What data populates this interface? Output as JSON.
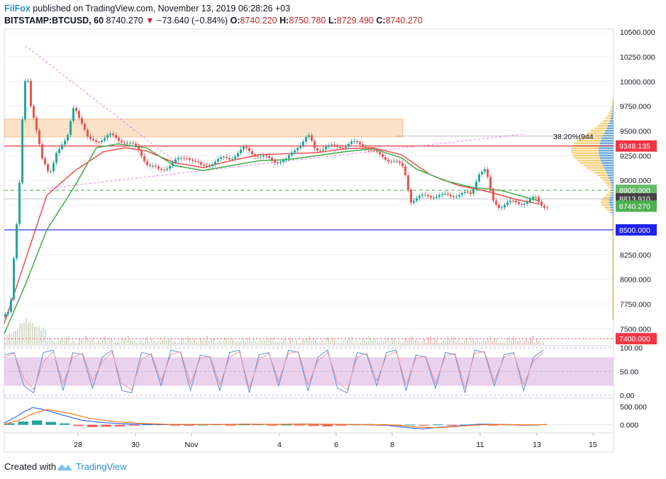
{
  "header": {
    "brand": "FilFox",
    "published": "published on TradingView.com, November 13, 2019 06:28:26 +03",
    "symbol": "BITSTAMP:BTCUSD, 60",
    "last": "8740.270",
    "arrow": "▼",
    "change": "−73.640 (−0.84%)",
    "o_label": "O:",
    "o_val": "8740.220",
    "h_label": "H:",
    "h_val": "8750.780",
    "l_label": "L:",
    "l_val": "8729.490",
    "c_label": "C:",
    "c_val": "8740.270"
  },
  "footer": {
    "created": "Created with",
    "brand": "TradingView"
  },
  "colors": {
    "up": "#26a69a",
    "down": "#ef5350",
    "grid": "#eef1f6",
    "ma_red": "#ef4444",
    "ma_green": "#4caf50",
    "support_blue": "#1c1cf0",
    "resistance_red": "#e53935",
    "zone": "#fbe2c8",
    "stoch_band": "#e1bee7"
  },
  "chart_data": [
    {
      "type": "candlestick",
      "title": "",
      "x_ticks": [
        "28",
        "30",
        "Nov",
        "4",
        "6",
        "8",
        "11",
        "13",
        "15"
      ],
      "y_ticks": [
        "10500.000",
        "10250.000",
        "10000.000",
        "9750.000",
        "9500.000",
        "9250.000",
        "9000.000",
        "8750.000",
        "8500.000",
        "8250.000",
        "8000.000",
        "7750.000",
        "7500.000"
      ],
      "ylim": [
        7330,
        10530
      ],
      "price_tags": [
        {
          "label": "9348.135",
          "value": 9348.135,
          "color": "#f23645"
        },
        {
          "label": "8900.000",
          "value": 8900,
          "color": "#66bb6a"
        },
        {
          "label": "8813.910",
          "value": 8813.91,
          "color": "#444444"
        },
        {
          "label": "8740.270",
          "value": 8740.27,
          "color": "#4caf50"
        },
        {
          "label": "8500.000",
          "value": 8500,
          "color": "#1e22f0"
        },
        {
          "label": "7400.000",
          "value": 7400,
          "color": "#f23645"
        }
      ],
      "fib_label": "38.20%(944",
      "fib_value": 9448,
      "resistance_zone": [
        9440,
        9620
      ],
      "series": [
        {
          "name": "",
          "kind": "ma-red",
          "points": [
            [
              0,
              7550
            ],
            [
              30,
              8200
            ],
            [
              60,
              8850
            ],
            [
              100,
              9100
            ],
            [
              140,
              9290
            ],
            [
              170,
              9330
            ],
            [
              200,
              9300
            ],
            [
              240,
              9180
            ],
            [
              280,
              9130
            ],
            [
              320,
              9200
            ],
            [
              360,
              9260
            ],
            [
              400,
              9270
            ],
            [
              440,
              9280
            ],
            [
              480,
              9320
            ],
            [
              520,
              9330
            ],
            [
              560,
              9260
            ],
            [
              600,
              9060
            ],
            [
              640,
              8950
            ],
            [
              680,
              8890
            ],
            [
              720,
              8810
            ],
            [
              755,
              8760
            ]
          ]
        },
        {
          "name": "",
          "kind": "ma-green",
          "points": [
            [
              0,
              7450
            ],
            [
              30,
              7950
            ],
            [
              60,
              8500
            ],
            [
              100,
              8950
            ],
            [
              130,
              9330
            ],
            [
              160,
              9370
            ],
            [
              200,
              9330
            ],
            [
              240,
              9150
            ],
            [
              280,
              9100
            ],
            [
              320,
              9150
            ],
            [
              360,
              9200
            ],
            [
              400,
              9210
            ],
            [
              440,
              9250
            ],
            [
              480,
              9290
            ],
            [
              520,
              9320
            ],
            [
              560,
              9230
            ],
            [
              580,
              9120
            ],
            [
              620,
              9000
            ],
            [
              660,
              8930
            ],
            [
              700,
              8900
            ],
            [
              755,
              8790
            ]
          ]
        },
        {
          "name": "",
          "kind": "close",
          "points": [
            [
              0,
              7620
            ],
            [
              10,
              7720
            ],
            [
              15,
              8230
            ],
            [
              22,
              8800
            ],
            [
              28,
              9750
            ],
            [
              33,
              10150
            ],
            [
              38,
              9800
            ],
            [
              45,
              9600
            ],
            [
              55,
              9200
            ],
            [
              65,
              9050
            ],
            [
              75,
              9300
            ],
            [
              90,
              9400
            ],
            [
              100,
              9780
            ],
            [
              110,
              9600
            ],
            [
              120,
              9400
            ],
            [
              130,
              9400
            ],
            [
              150,
              9450
            ],
            [
              170,
              9400
            ],
            [
              190,
              9320
            ],
            [
              205,
              9150
            ],
            [
              220,
              9100
            ],
            [
              240,
              9180
            ],
            [
              260,
              9250
            ],
            [
              280,
              9130
            ],
            [
              300,
              9200
            ],
            [
              320,
              9230
            ],
            [
              340,
              9320
            ],
            [
              360,
              9250
            ],
            [
              380,
              9200
            ],
            [
              400,
              9200
            ],
            [
              415,
              9350
            ],
            [
              430,
              9450
            ],
            [
              440,
              9300
            ],
            [
              455,
              9350
            ],
            [
              470,
              9330
            ],
            [
              490,
              9380
            ],
            [
              510,
              9350
            ],
            [
              530,
              9250
            ],
            [
              550,
              9200
            ],
            [
              565,
              9120
            ],
            [
              575,
              8800
            ],
            [
              585,
              8820
            ],
            [
              600,
              8850
            ],
            [
              620,
              8840
            ],
            [
              640,
              8860
            ],
            [
              660,
              8860
            ],
            [
              670,
              9080
            ],
            [
              680,
              9100
            ],
            [
              690,
              8800
            ],
            [
              700,
              8740
            ],
            [
              720,
              8780
            ],
            [
              740,
              8780
            ],
            [
              750,
              8820
            ],
            [
              760,
              8760
            ],
            [
              765,
              8740
            ]
          ]
        }
      ]
    },
    {
      "type": "line",
      "title": "",
      "y_ticks": [
        "100.00",
        "50.00",
        "0.00"
      ],
      "ylim": [
        0,
        100
      ],
      "band": [
        20,
        80
      ],
      "series": [
        {
          "name": "",
          "kind": "stoch-k",
          "values": [
            85,
            90,
            20,
            5,
            90,
            95,
            10,
            90,
            85,
            15,
            80,
            95,
            10,
            5,
            90,
            85,
            20,
            95,
            90,
            10,
            85,
            80,
            10,
            90,
            95,
            5,
            85,
            90,
            20,
            95,
            90,
            10,
            80,
            95,
            15,
            5,
            90,
            85,
            20,
            90,
            95,
            10,
            85,
            80,
            15,
            90,
            85,
            5,
            95,
            90,
            20,
            85,
            90,
            10,
            80,
            95
          ]
        },
        {
          "name": "",
          "kind": "stoch-d",
          "values": [
            80,
            88,
            35,
            12,
            70,
            92,
            25,
            80,
            88,
            30,
            70,
            90,
            25,
            12,
            75,
            88,
            30,
            85,
            92,
            25,
            78,
            82,
            22,
            80,
            92,
            15,
            75,
            88,
            30,
            88,
            92,
            22,
            72,
            90,
            28,
            12,
            80,
            88,
            30,
            82,
            92,
            22,
            78,
            82,
            25,
            82,
            88,
            15,
            88,
            92,
            30,
            80,
            88,
            22,
            72,
            90
          ]
        }
      ]
    },
    {
      "type": "bar",
      "title": "",
      "y_ticks": [
        "500.000",
        "0.000"
      ],
      "ylim": [
        -180,
        650
      ],
      "series": [
        {
          "name": "",
          "kind": "macd",
          "points": [
            [
              0,
              50
            ],
            [
              15,
              200
            ],
            [
              30,
              380
            ],
            [
              40,
              470
            ],
            [
              55,
              420
            ],
            [
              80,
              280
            ],
            [
              110,
              120
            ],
            [
              140,
              60
            ],
            [
              180,
              20
            ],
            [
              220,
              10
            ],
            [
              260,
              5
            ],
            [
              300,
              10
            ],
            [
              340,
              20
            ],
            [
              380,
              10
            ],
            [
              420,
              25
            ],
            [
              460,
              15
            ],
            [
              500,
              5
            ],
            [
              540,
              -15
            ],
            [
              570,
              -80
            ],
            [
              590,
              -110
            ],
            [
              610,
              -70
            ],
            [
              640,
              -30
            ],
            [
              670,
              20
            ],
            [
              700,
              10
            ],
            [
              740,
              -10
            ],
            [
              765,
              10
            ]
          ]
        },
        {
          "name": "",
          "kind": "signal",
          "points": [
            [
              0,
              10
            ],
            [
              20,
              120
            ],
            [
              40,
              300
            ],
            [
              60,
              420
            ],
            [
              90,
              320
            ],
            [
              120,
              180
            ],
            [
              150,
              100
            ],
            [
              190,
              40
            ],
            [
              230,
              15
            ],
            [
              270,
              10
            ],
            [
              310,
              10
            ],
            [
              350,
              15
            ],
            [
              390,
              15
            ],
            [
              430,
              20
            ],
            [
              470,
              15
            ],
            [
              510,
              5
            ],
            [
              550,
              -5
            ],
            [
              580,
              -60
            ],
            [
              610,
              -80
            ],
            [
              640,
              -40
            ],
            [
              670,
              0
            ],
            [
              700,
              10
            ],
            [
              740,
              0
            ],
            [
              765,
              5
            ]
          ]
        },
        {
          "name": "",
          "kind": "hist",
          "values": [
            40,
            90,
            120,
            80,
            40,
            -30,
            -60,
            -50,
            -40,
            -20,
            10,
            15,
            -10,
            -20,
            5,
            10,
            -5,
            8,
            12,
            -8,
            5,
            -10,
            -30,
            -40,
            -20,
            10,
            20,
            15,
            -10,
            5,
            -5,
            10,
            -10,
            5,
            15,
            -15,
            10,
            -5,
            5
          ]
        }
      ]
    }
  ]
}
